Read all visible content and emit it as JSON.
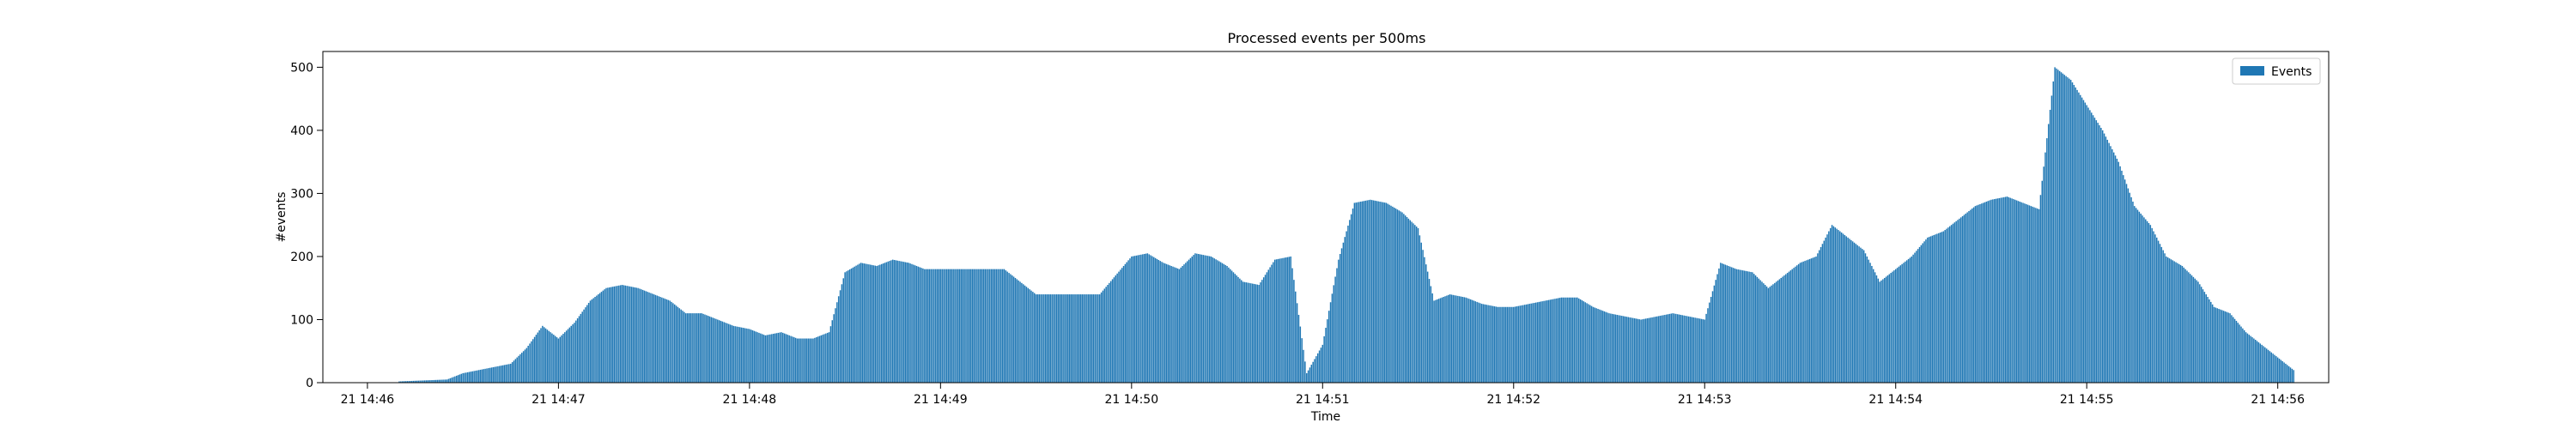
{
  "chart_data": {
    "type": "bar",
    "title": "Processed events per 500ms",
    "xlabel": "Time",
    "ylabel": "#events",
    "ylim": [
      0,
      525
    ],
    "xlim": [
      "14:45:46",
      "14:56:16"
    ],
    "yticks": [
      0,
      100,
      200,
      300,
      400,
      500
    ],
    "xticks": [
      "21 14:46",
      "21 14:47",
      "21 14:48",
      "21 14:49",
      "21 14:50",
      "21 14:51",
      "21 14:52",
      "21 14:53",
      "21 14:54",
      "21 14:55",
      "21 14:56"
    ],
    "grid": false,
    "legend_position": "top-right",
    "series": [
      {
        "name": "Events",
        "color": "#1f77b4",
        "bin": "500ms",
        "x": [
          "14:46:10",
          "14:46:25",
          "14:46:30",
          "14:46:40",
          "14:46:45",
          "14:46:50",
          "14:46:55",
          "14:47:00",
          "14:47:05",
          "14:47:10",
          "14:47:15",
          "14:47:20",
          "14:47:25",
          "14:47:30",
          "14:47:35",
          "14:47:40",
          "14:47:45",
          "14:47:50",
          "14:47:55",
          "14:48:00",
          "14:48:05",
          "14:48:10",
          "14:48:15",
          "14:48:20",
          "14:48:25",
          "14:48:30",
          "14:48:35",
          "14:48:40",
          "14:48:45",
          "14:48:50",
          "14:48:55",
          "14:49:00",
          "14:49:10",
          "14:49:20",
          "14:49:30",
          "14:49:40",
          "14:49:50",
          "14:50:00",
          "14:50:05",
          "14:50:10",
          "14:50:15",
          "14:50:20",
          "14:50:25",
          "14:50:30",
          "14:50:35",
          "14:50:40",
          "14:50:45",
          "14:50:50",
          "14:50:55",
          "14:51:00",
          "14:51:05",
          "14:51:10",
          "14:51:15",
          "14:51:20",
          "14:51:25",
          "14:51:30",
          "14:51:35",
          "14:51:40",
          "14:51:45",
          "14:51:50",
          "14:51:55",
          "14:52:00",
          "14:52:05",
          "14:52:10",
          "14:52:15",
          "14:52:20",
          "14:52:25",
          "14:52:30",
          "14:52:40",
          "14:52:50",
          "14:53:00",
          "14:53:05",
          "14:53:10",
          "14:53:15",
          "14:53:20",
          "14:53:25",
          "14:53:30",
          "14:53:35",
          "14:53:40",
          "14:53:45",
          "14:53:50",
          "14:53:55",
          "14:54:00",
          "14:54:05",
          "14:54:10",
          "14:54:15",
          "14:54:20",
          "14:54:25",
          "14:54:30",
          "14:54:35",
          "14:54:40",
          "14:54:45",
          "14:54:50",
          "14:54:55",
          "14:55:00",
          "14:55:05",
          "14:55:10",
          "14:55:15",
          "14:55:20",
          "14:55:25",
          "14:55:30",
          "14:55:35",
          "14:55:40",
          "14:55:45",
          "14:55:50",
          "14:55:55",
          "14:56:00",
          "14:56:05"
        ],
        "values": [
          2,
          5,
          15,
          25,
          30,
          55,
          90,
          70,
          95,
          130,
          150,
          155,
          150,
          140,
          130,
          110,
          110,
          100,
          90,
          85,
          75,
          80,
          70,
          70,
          80,
          175,
          190,
          185,
          195,
          190,
          180,
          180,
          180,
          180,
          140,
          140,
          140,
          200,
          205,
          190,
          180,
          205,
          200,
          185,
          160,
          155,
          195,
          200,
          15,
          60,
          195,
          285,
          290,
          285,
          270,
          245,
          130,
          140,
          135,
          125,
          120,
          120,
          125,
          130,
          135,
          135,
          120,
          110,
          100,
          110,
          100,
          190,
          180,
          175,
          150,
          170,
          190,
          200,
          250,
          230,
          210,
          160,
          180,
          200,
          230,
          240,
          260,
          280,
          290,
          295,
          285,
          275,
          500,
          480,
          440,
          400,
          350,
          280,
          250,
          200,
          185,
          160,
          120,
          110,
          80,
          60,
          40,
          20
        ]
      }
    ]
  }
}
